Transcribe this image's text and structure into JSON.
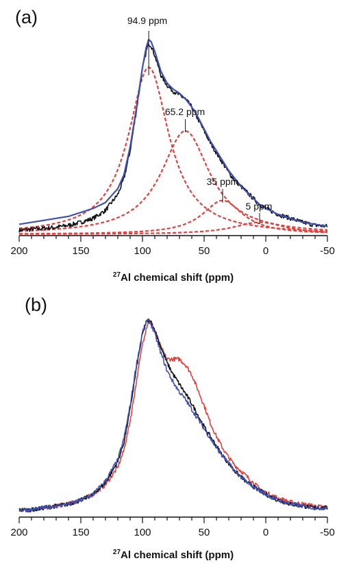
{
  "chart_data": [
    {
      "type": "line",
      "panel_label": "(a)",
      "xlabel_sup": "27",
      "xlabel": "Al chemical shift  (ppm)",
      "xlim": [
        200,
        -50
      ],
      "x_ticks": [
        200,
        150,
        100,
        50,
        0,
        -50
      ],
      "x_tick_labels": [
        "200",
        "150",
        "100",
        "50",
        "0",
        "-50"
      ],
      "grid": false,
      "annotations": [
        {
          "text": "94.9 ppm",
          "x": 94.9
        },
        {
          "text": "65.2 ppm",
          "x": 65.2
        },
        {
          "text": "35 ppm",
          "x": 35
        },
        {
          "text": "5 ppm",
          "x": 5
        }
      ],
      "components": [
        {
          "center": 94.9,
          "height": 0.84,
          "width": 20,
          "color": "#e0403f",
          "style": "dashed"
        },
        {
          "center": 65.2,
          "height": 0.52,
          "width": 24,
          "color": "#e0403f",
          "style": "dashed"
        },
        {
          "center": 35,
          "height": 0.17,
          "width": 20,
          "color": "#e0403f",
          "style": "dashed"
        },
        {
          "center": 5,
          "height": 0.06,
          "width": 26,
          "color": "#e0403f",
          "style": "dashed"
        }
      ],
      "series": [
        {
          "color": "#111111",
          "style": "solid",
          "noise": true,
          "x": [
            200,
            190,
            180,
            170,
            160,
            150,
            140,
            130,
            120,
            115,
            110,
            105,
            100,
            97,
            95,
            93,
            90,
            87,
            85,
            80,
            75,
            70,
            65,
            60,
            55,
            50,
            45,
            40,
            35,
            30,
            25,
            20,
            15,
            10,
            5,
            0,
            -10,
            -20,
            -30,
            -40,
            -50
          ],
          "y": [
            0.02,
            0.025,
            0.03,
            0.035,
            0.045,
            0.06,
            0.08,
            0.12,
            0.2,
            0.28,
            0.42,
            0.62,
            0.83,
            0.92,
            0.96,
            0.95,
            0.9,
            0.84,
            0.8,
            0.75,
            0.72,
            0.7,
            0.68,
            0.64,
            0.58,
            0.52,
            0.46,
            0.41,
            0.36,
            0.31,
            0.27,
            0.24,
            0.21,
            0.18,
            0.15,
            0.13,
            0.1,
            0.08,
            0.06,
            0.045,
            0.04
          ]
        },
        {
          "color": "#3f51b5",
          "style": "solid",
          "noise": false,
          "x": [
            200,
            190,
            180,
            170,
            160,
            150,
            140,
            130,
            120,
            115,
            110,
            105,
            100,
            97,
            95,
            93,
            90,
            87,
            85,
            80,
            75,
            70,
            65,
            60,
            55,
            50,
            45,
            40,
            35,
            30,
            25,
            20,
            15,
            10,
            5,
            0,
            -10,
            -20,
            -30,
            -40,
            -50
          ],
          "y": [
            0.05,
            0.06,
            0.07,
            0.08,
            0.09,
            0.11,
            0.13,
            0.16,
            0.23,
            0.3,
            0.44,
            0.63,
            0.84,
            0.94,
            0.98,
            0.97,
            0.92,
            0.86,
            0.82,
            0.76,
            0.73,
            0.71,
            0.68,
            0.64,
            0.59,
            0.53,
            0.47,
            0.42,
            0.37,
            0.32,
            0.28,
            0.24,
            0.21,
            0.18,
            0.15,
            0.13,
            0.1,
            0.08,
            0.06,
            0.05,
            0.04
          ]
        }
      ]
    },
    {
      "type": "line",
      "panel_label": "(b)",
      "xlabel_sup": "27",
      "xlabel": "Al chemical shift  (ppm)",
      "xlim": [
        200,
        -50
      ],
      "x_ticks": [
        200,
        150,
        100,
        50,
        0,
        -50
      ],
      "x_tick_labels": [
        "200",
        "150",
        "100",
        "50",
        "0",
        "-50"
      ],
      "grid": false,
      "series": [
        {
          "color": "#e0403f",
          "style": "solid",
          "noise": true,
          "x": [
            200,
            190,
            180,
            170,
            160,
            150,
            140,
            130,
            120,
            115,
            110,
            105,
            100,
            97,
            95,
            93,
            90,
            85,
            80,
            75,
            70,
            65,
            60,
            55,
            50,
            45,
            40,
            35,
            30,
            25,
            20,
            15,
            10,
            5,
            0,
            -10,
            -20,
            -30,
            -40,
            -50
          ],
          "y": [
            0.02,
            0.02,
            0.03,
            0.04,
            0.05,
            0.07,
            0.1,
            0.15,
            0.24,
            0.33,
            0.48,
            0.68,
            0.88,
            0.96,
            1.0,
            0.99,
            0.95,
            0.86,
            0.8,
            0.8,
            0.8,
            0.77,
            0.72,
            0.64,
            0.56,
            0.47,
            0.4,
            0.34,
            0.29,
            0.25,
            0.22,
            0.19,
            0.16,
            0.13,
            0.11,
            0.08,
            0.06,
            0.05,
            0.04,
            0.03
          ]
        },
        {
          "color": "#111111",
          "style": "solid",
          "noise": true,
          "x": [
            200,
            190,
            180,
            170,
            160,
            150,
            140,
            130,
            120,
            115,
            110,
            105,
            100,
            97,
            95,
            93,
            90,
            85,
            80,
            75,
            70,
            65,
            60,
            55,
            50,
            45,
            40,
            35,
            30,
            25,
            20,
            15,
            10,
            5,
            0,
            -10,
            -20,
            -30,
            -40,
            -50
          ],
          "y": [
            0.02,
            0.02,
            0.03,
            0.04,
            0.05,
            0.07,
            0.1,
            0.16,
            0.27,
            0.37,
            0.54,
            0.75,
            0.93,
            0.99,
            1.0,
            0.99,
            0.95,
            0.86,
            0.78,
            0.72,
            0.67,
            0.62,
            0.57,
            0.51,
            0.45,
            0.4,
            0.35,
            0.3,
            0.26,
            0.22,
            0.19,
            0.16,
            0.14,
            0.12,
            0.1,
            0.07,
            0.05,
            0.04,
            0.03,
            0.03
          ]
        },
        {
          "color": "#3f51b5",
          "style": "solid",
          "noise": true,
          "x": [
            200,
            190,
            180,
            170,
            160,
            150,
            140,
            130,
            120,
            115,
            110,
            105,
            100,
            97,
            95,
            93,
            90,
            85,
            80,
            75,
            70,
            65,
            60,
            55,
            50,
            45,
            40,
            35,
            30,
            25,
            20,
            15,
            10,
            5,
            0,
            -10,
            -20,
            -30,
            -40,
            -50
          ],
          "y": [
            0.02,
            0.02,
            0.03,
            0.04,
            0.05,
            0.07,
            0.1,
            0.17,
            0.28,
            0.39,
            0.56,
            0.77,
            0.94,
            0.99,
            1.0,
            0.98,
            0.93,
            0.83,
            0.74,
            0.68,
            0.63,
            0.59,
            0.54,
            0.49,
            0.44,
            0.39,
            0.34,
            0.3,
            0.26,
            0.22,
            0.19,
            0.16,
            0.14,
            0.12,
            0.1,
            0.07,
            0.05,
            0.04,
            0.03,
            0.03
          ]
        }
      ]
    }
  ]
}
